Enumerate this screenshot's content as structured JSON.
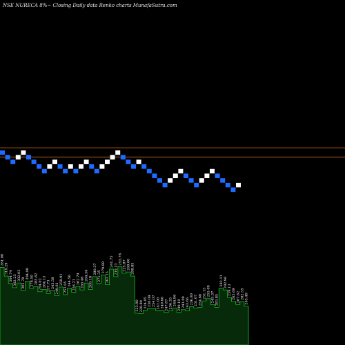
{
  "chart_data": {
    "type": "renko",
    "title": "NSE NURECA 8%~ Closing Daily data Renko charts MunafaSutra.com",
    "colors": {
      "background": "#000000",
      "up_brick": "#ffffff",
      "down_brick": "#1e6bff",
      "level_line": "#b85a10",
      "volume_fill": "#062a0a",
      "volume_stroke": "#17c21f"
    },
    "bricks": [
      {
        "dir": "down",
        "level": 0
      },
      {
        "dir": "down",
        "level": -1
      },
      {
        "dir": "down",
        "level": -2
      },
      {
        "dir": "up",
        "level": -1
      },
      {
        "dir": "up",
        "level": 0
      },
      {
        "dir": "down",
        "level": -1
      },
      {
        "dir": "down",
        "level": -2
      },
      {
        "dir": "down",
        "level": -3
      },
      {
        "dir": "down",
        "level": -4
      },
      {
        "dir": "up",
        "level": -3
      },
      {
        "dir": "up",
        "level": -2
      },
      {
        "dir": "down",
        "level": -3
      },
      {
        "dir": "down",
        "level": -4
      },
      {
        "dir": "up",
        "level": -3
      },
      {
        "dir": "down",
        "level": -4
      },
      {
        "dir": "up",
        "level": -3
      },
      {
        "dir": "up",
        "level": -2
      },
      {
        "dir": "down",
        "level": -3
      },
      {
        "dir": "down",
        "level": -4
      },
      {
        "dir": "up",
        "level": -3
      },
      {
        "dir": "up",
        "level": -2
      },
      {
        "dir": "up",
        "level": -1
      },
      {
        "dir": "up",
        "level": 0
      },
      {
        "dir": "down",
        "level": -1
      },
      {
        "dir": "down",
        "level": -2
      },
      {
        "dir": "down",
        "level": -3
      },
      {
        "dir": "up",
        "level": -2
      },
      {
        "dir": "down",
        "level": -3
      },
      {
        "dir": "down",
        "level": -4
      },
      {
        "dir": "down",
        "level": -5
      },
      {
        "dir": "down",
        "level": -6
      },
      {
        "dir": "down",
        "level": -7
      },
      {
        "dir": "up",
        "level": -6
      },
      {
        "dir": "up",
        "level": -5
      },
      {
        "dir": "up",
        "level": -4
      },
      {
        "dir": "down",
        "level": -5
      },
      {
        "dir": "down",
        "level": -6
      },
      {
        "dir": "down",
        "level": -7
      },
      {
        "dir": "up",
        "level": -6
      },
      {
        "dir": "up",
        "level": -5
      },
      {
        "dir": "up",
        "level": -4
      },
      {
        "dir": "down",
        "level": -5
      },
      {
        "dir": "down",
        "level": -6
      },
      {
        "dir": "down",
        "level": -7
      },
      {
        "dir": "down",
        "level": -8
      },
      {
        "dir": "up",
        "level": -7
      }
    ],
    "level_lines": [
      1,
      -1
    ],
    "volume": {
      "values": [
        268,
        238,
        212,
        198,
        214,
        188,
        220,
        196,
        202,
        184,
        192,
        178,
        188,
        170,
        200,
        174,
        196,
        182,
        202,
        190,
        214,
        192,
        236,
        212,
        242,
        208,
        262,
        236,
        270,
        248,
        252,
        238,
        110,
        108,
        120,
        126,
        126,
        118,
        120,
        112,
        118,
        128,
        112,
        122,
        118,
        132,
        128,
        130,
        152,
        160,
        140,
        130,
        196,
        190,
        164,
        150,
        140,
        150,
        134
      ],
      "labels": [
        "281.00",
        "316.29",
        "304.74",
        "302.23",
        "302.03",
        "302.78",
        "294.08",
        "278.50",
        "285.62",
        "254.02",
        "264.13",
        "257.73",
        "243.58",
        "249.61",
        "258.91",
        "251.05",
        "244.56",
        "256.21",
        "262.79",
        "265.46",
        "264.36",
        "269.18",
        "280.37",
        "271.35",
        "279.88",
        "262.15",
        "241.75",
        "239.13",
        "253.78",
        "225.87",
        "269.00",
        "288.85",
        "223.90",
        "228.89",
        "224.05",
        "230.09",
        "254.07",
        "241.00",
        "249.60",
        "247.87",
        "236.35",
        "244.96",
        "249.10",
        "241.09",
        "243.66",
        "236.80",
        "251.07",
        "254.60",
        "251.13",
        "255.09",
        "245.37",
        "283.85",
        "282.11",
        "292.96",
        "239.13",
        "265.69",
        "267.62",
        "282.55",
        "263.49"
      ]
    }
  }
}
